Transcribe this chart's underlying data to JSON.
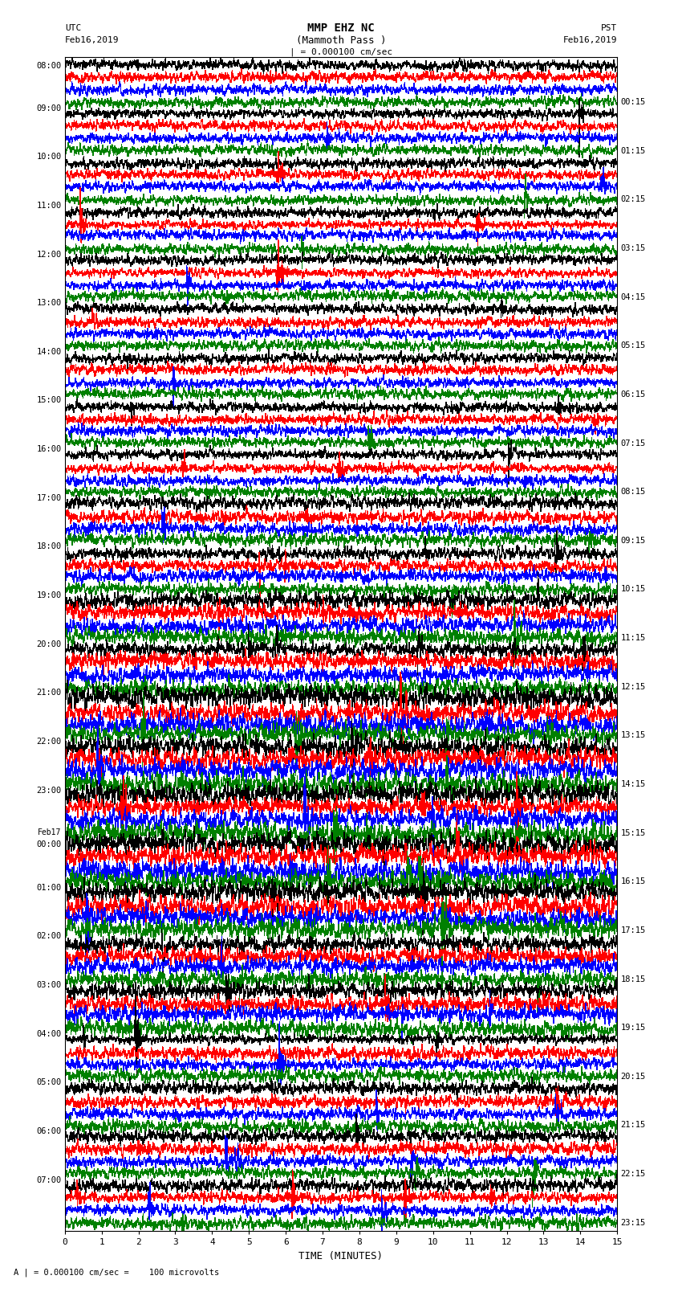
{
  "title_line1": "MMP EHZ NC",
  "title_line2": "(Mammoth Pass )",
  "title_line3": "| = 0.000100 cm/sec",
  "label_left_top": "UTC",
  "label_left_date": "Feb16,2019",
  "label_right_top": "PST",
  "label_right_date": "Feb16,2019",
  "xlabel": "TIME (MINUTES)",
  "footnote": "A | = 0.000100 cm/sec =    100 microvolts",
  "xlim": [
    0,
    15
  ],
  "xticks": [
    0,
    1,
    2,
    3,
    4,
    5,
    6,
    7,
    8,
    9,
    10,
    11,
    12,
    13,
    14,
    15
  ],
  "trace_colors_cycle": [
    "black",
    "red",
    "blue",
    "green"
  ],
  "background_color": "white",
  "n_traces": 96,
  "figsize": [
    8.5,
    16.13
  ],
  "dpi": 100,
  "left_labels": [
    "08:00",
    "09:00",
    "10:00",
    "11:00",
    "12:00",
    "13:00",
    "14:00",
    "15:00",
    "16:00",
    "17:00",
    "18:00",
    "19:00",
    "20:00",
    "21:00",
    "22:00",
    "23:00",
    "Feb17\n00:00",
    "01:00",
    "02:00",
    "03:00",
    "04:00",
    "05:00",
    "06:00",
    "07:00"
  ],
  "right_labels": [
    "00:15",
    "01:15",
    "02:15",
    "03:15",
    "04:15",
    "05:15",
    "06:15",
    "07:15",
    "08:15",
    "09:15",
    "10:15",
    "11:15",
    "12:15",
    "13:15",
    "14:15",
    "15:15",
    "16:15",
    "17:15",
    "18:15",
    "19:15",
    "20:15",
    "21:15",
    "22:15",
    "23:15"
  ],
  "amp_scale_early": 0.25,
  "amp_scale_mid": 0.32,
  "amp_scale_late": 0.42,
  "amp_scale_very_late": 0.55,
  "lw": 0.35
}
